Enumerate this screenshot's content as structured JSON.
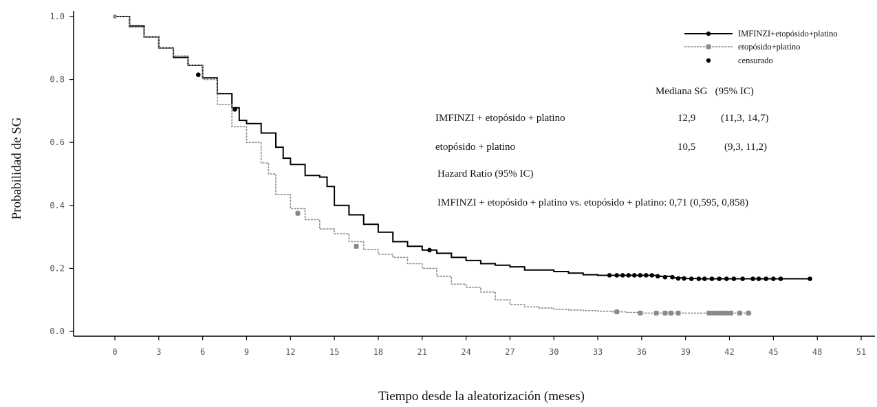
{
  "chart_data": {
    "type": "line",
    "title": "",
    "xlabel": "Tiempo desde la aleatorización (meses)",
    "ylabel": "Probabilidad de SG",
    "xlim": [
      0,
      51
    ],
    "ylim": [
      0,
      1
    ],
    "xticks": [
      "0",
      "3",
      "6",
      "9",
      "12",
      "15",
      "18",
      "21",
      "24",
      "27",
      "30",
      "33",
      "36",
      "39",
      "42",
      "45",
      "48",
      "51"
    ],
    "yticks": [
      "0.0",
      "0.2",
      "0.4",
      "0.6",
      "0.8",
      "1.0"
    ],
    "grid": false,
    "legend_position": "top-right",
    "legend": {
      "entries": [
        "IMFINZI+etopósido+platino",
        "etopósido+platino",
        "censurado"
      ]
    },
    "series": [
      {
        "name": "IMFINZI+etopósido+platino",
        "color": "#000000",
        "style": "solid",
        "x": [
          0,
          1,
          2,
          3,
          4,
          5,
          6,
          7,
          8,
          8.5,
          9,
          10,
          11,
          11.5,
          12,
          13,
          14,
          14.5,
          15,
          16,
          17,
          18,
          19,
          20,
          21,
          22,
          23,
          24,
          25,
          26,
          27,
          28,
          29,
          30,
          31,
          32,
          33,
          34,
          35,
          36,
          37,
          38,
          39,
          40,
          41,
          42,
          43,
          44,
          45,
          46,
          47.5
        ],
        "y": [
          1.0,
          0.97,
          0.935,
          0.9,
          0.87,
          0.845,
          0.805,
          0.755,
          0.71,
          0.67,
          0.66,
          0.63,
          0.585,
          0.55,
          0.53,
          0.495,
          0.49,
          0.46,
          0.4,
          0.37,
          0.34,
          0.315,
          0.285,
          0.27,
          0.258,
          0.248,
          0.235,
          0.225,
          0.215,
          0.21,
          0.205,
          0.195,
          0.195,
          0.19,
          0.185,
          0.18,
          0.178,
          0.178,
          0.178,
          0.178,
          0.175,
          0.17,
          0.168,
          0.167,
          0.167,
          0.167,
          0.167,
          0.167,
          0.167,
          0.167,
          0.167
        ],
        "censored": [
          [
            5.7,
            0.815
          ],
          [
            8.2,
            0.705
          ],
          [
            21.5,
            0.258
          ],
          [
            33.8,
            0.178
          ],
          [
            34.3,
            0.178
          ],
          [
            34.7,
            0.178
          ],
          [
            35.1,
            0.178
          ],
          [
            35.5,
            0.178
          ],
          [
            35.9,
            0.178
          ],
          [
            36.3,
            0.178
          ],
          [
            36.7,
            0.178
          ],
          [
            37.1,
            0.175
          ],
          [
            37.6,
            0.172
          ],
          [
            38.1,
            0.172
          ],
          [
            38.5,
            0.168
          ],
          [
            38.9,
            0.168
          ],
          [
            39.4,
            0.167
          ],
          [
            39.9,
            0.167
          ],
          [
            40.3,
            0.167
          ],
          [
            40.8,
            0.167
          ],
          [
            41.3,
            0.167
          ],
          [
            41.8,
            0.167
          ],
          [
            42.3,
            0.167
          ],
          [
            42.9,
            0.167
          ],
          [
            43.6,
            0.167
          ],
          [
            44.0,
            0.167
          ],
          [
            44.5,
            0.167
          ],
          [
            45.0,
            0.167
          ],
          [
            45.5,
            0.167
          ],
          [
            47.5,
            0.167
          ]
        ]
      },
      {
        "name": "etopósido+platino",
        "color": "#8a8a8a",
        "style": "dashed",
        "x": [
          0,
          1,
          2,
          3,
          4,
          5,
          6,
          7,
          8,
          9,
          10,
          10.5,
          11,
          12,
          13,
          14,
          15,
          16,
          17,
          18,
          19,
          20,
          21,
          22,
          23,
          24,
          25,
          26,
          27,
          28,
          29,
          30,
          31,
          32,
          33,
          34,
          35,
          36,
          37,
          38,
          39,
          40,
          41,
          42,
          43,
          43.5
        ],
        "y": [
          1.0,
          0.965,
          0.935,
          0.9,
          0.875,
          0.845,
          0.8,
          0.72,
          0.65,
          0.6,
          0.535,
          0.5,
          0.435,
          0.39,
          0.355,
          0.325,
          0.31,
          0.285,
          0.26,
          0.245,
          0.235,
          0.215,
          0.2,
          0.175,
          0.15,
          0.14,
          0.125,
          0.1,
          0.085,
          0.078,
          0.074,
          0.07,
          0.068,
          0.066,
          0.064,
          0.062,
          0.06,
          0.058,
          0.058,
          0.058,
          0.058,
          0.058,
          0.058,
          0.058,
          0.058,
          0.058
        ],
        "censored": [
          [
            12.5,
            0.375
          ],
          [
            16.5,
            0.27
          ],
          [
            34.3,
            0.062
          ],
          [
            35.9,
            0.058
          ],
          [
            37.0,
            0.058
          ],
          [
            37.6,
            0.058
          ],
          [
            38.0,
            0.058
          ],
          [
            38.5,
            0.058
          ],
          [
            40.6,
            0.058
          ],
          [
            40.9,
            0.058
          ],
          [
            41.2,
            0.058
          ],
          [
            41.5,
            0.058
          ],
          [
            41.8,
            0.058
          ],
          [
            42.1,
            0.058
          ],
          [
            42.7,
            0.058
          ],
          [
            43.3,
            0.058
          ]
        ]
      }
    ],
    "annotations": {
      "median_header": "Mediana SG   (95% IC)",
      "rows": [
        {
          "label": "IMFINZI + etopósido + platino",
          "median": "12,9",
          "ci": "(11,3, 14,7)"
        },
        {
          "label": "etopósido + platino",
          "median": "10,5",
          "ci": "(9,3, 11,2)"
        }
      ],
      "hr_header": "Hazard Ratio (95% IC)",
      "hr_text": "IMFINZI + etopósido + platino vs. etopósido + platino: 0,71 (0,595, 0,858)"
    }
  }
}
